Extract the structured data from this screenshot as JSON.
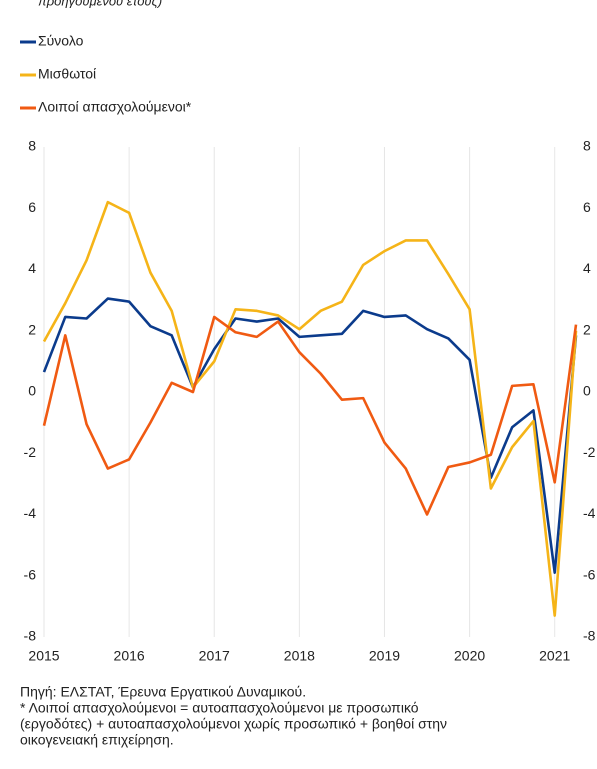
{
  "chart_data": {
    "type": "line",
    "subtitle": "προηγούμενου έτους)",
    "categories": [
      "2015",
      null,
      null,
      null,
      "2016",
      null,
      null,
      null,
      "2017",
      null,
      null,
      null,
      "2018",
      null,
      null,
      null,
      "2019",
      null,
      null,
      null,
      "2020",
      null,
      null,
      null,
      "2021",
      null
    ],
    "series": [
      {
        "name": "Σύνολο",
        "color": "#0b3b8c",
        "values": [
          0.65,
          2.45,
          2.4,
          3.05,
          2.95,
          2.15,
          1.85,
          0.15,
          1.4,
          2.4,
          2.3,
          2.4,
          1.8,
          1.85,
          1.9,
          2.65,
          2.45,
          2.5,
          2.05,
          1.75,
          1.05,
          -2.8,
          -1.15,
          -0.6,
          -5.9,
          1.85
        ]
      },
      {
        "name": "Μισθωτοί",
        "color": "#f5b418",
        "values": [
          1.65,
          2.9,
          4.3,
          6.2,
          5.85,
          3.9,
          2.65,
          0.15,
          1.0,
          2.7,
          2.65,
          2.5,
          2.05,
          2.65,
          2.95,
          4.15,
          4.6,
          4.95,
          4.95,
          3.85,
          2.7,
          -3.15,
          -1.8,
          -0.95,
          -7.3,
          2.0
        ]
      },
      {
        "name": "Λοιποί απασχολούμενοι*",
        "color": "#f05a12",
        "values": [
          -1.1,
          1.85,
          -1.05,
          -2.5,
          -2.2,
          -1.0,
          0.3,
          0.0,
          2.45,
          1.95,
          1.8,
          2.3,
          1.3,
          0.6,
          -0.25,
          -0.2,
          -1.65,
          -2.5,
          -4.0,
          -2.45,
          -2.3,
          -2.05,
          0.2,
          0.25,
          -2.95,
          2.2
        ]
      }
    ],
    "ylim": [
      -8,
      8
    ],
    "yticks": [
      -8,
      -6,
      -4,
      -2,
      0,
      2,
      4,
      6,
      8
    ],
    "grid": true,
    "notes": [
      "Πηγή:  ΕΛΣΤΑΤ, Έρευνα Εργατικού Δυναμικού.",
      "* Λοιποί απασχολούμενοι = αυτοαπασχολούμενοι με προσωπικό",
      "(εργοδότες) + αυτοαπασχολούμενοι χωρίς προσωπικό + βοηθοί στην",
      "οικογενειακή επιχείρηση."
    ]
  }
}
